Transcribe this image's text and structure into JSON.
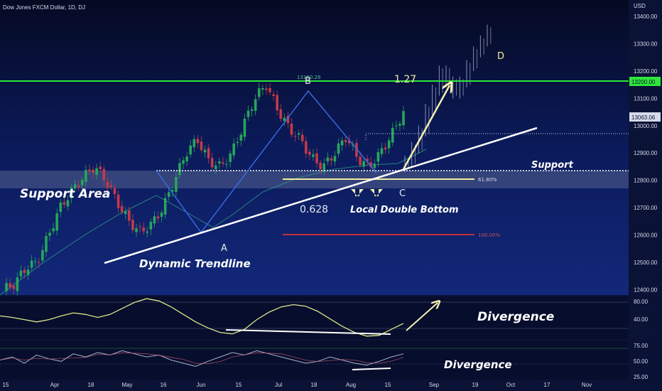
{
  "header": {
    "symbol_title": "Dow Jones FXCM Dollar, 1D, DJ",
    "currency": "USD"
  },
  "chart_data": {
    "type": "candlestick",
    "ylim": [
      12380,
      13460
    ],
    "y_ticks": [
      12400,
      12500,
      12600,
      12700,
      12800,
      12900,
      13000,
      13100,
      13200,
      13300,
      13400
    ],
    "x_ticks": [
      "15",
      "Apr",
      "18",
      "May",
      "16",
      "Jun",
      "15",
      "Jul",
      "18",
      "Aug",
      "15",
      "Sep",
      "19",
      "Oct",
      "17",
      "Nov"
    ],
    "price_badges": {
      "resistance": "13200.00",
      "current": "13063.06"
    },
    "ohlc_anchor_closes": [
      12400,
      12420,
      12480,
      12500,
      12600,
      12700,
      12760,
      12810,
      12850,
      12800,
      12720,
      12650,
      12610,
      12640,
      12700,
      12800,
      12900,
      12950,
      12870,
      12850,
      12900,
      13000,
      13100,
      13150,
      13060,
      12990,
      12950,
      12880,
      12850,
      12900,
      12960,
      12880,
      12850,
      12900,
      12970,
      13050
    ],
    "projection_closes": [
      12870,
      12920,
      12980,
      13060,
      13130,
      13200,
      13160,
      13120,
      13160,
      13220,
      13270,
      13310,
      13350
    ],
    "levels": [
      {
        "name": "Support",
        "value": 12855
      },
      {
        "name": "61.80%",
        "value": 12820
      },
      {
        "name": "100.00%",
        "value": 12610
      },
      {
        "name": "1.27",
        "value": 13200
      },
      {
        "name": "13150.28",
        "value": 13180
      }
    ],
    "annotations": {
      "support_area": "Support Area",
      "dynamic_trendline": "Dynamic Trendline",
      "support": "Support",
      "local_double_bottom": "Local Double Bottom",
      "ratio_0628": "0.628",
      "ratio_127": "1.27",
      "point_a": "A",
      "point_b": "B",
      "point_c": "C",
      "point_d": "D",
      "fib_618": "61.80%",
      "fib_100": "100.00%",
      "fib_top": "13150.28",
      "divergence_1": "Divergence",
      "divergence_2": "Divergence"
    },
    "osc1": {
      "ylim": [
        30,
        85
      ],
      "y_ticks": [
        "80.00",
        "40.00"
      ],
      "values": [
        60,
        58,
        55,
        52,
        55,
        60,
        64,
        62,
        58,
        62,
        70,
        78,
        83,
        80,
        72,
        62,
        52,
        44,
        38,
        36,
        42,
        55,
        65,
        72,
        75,
        73,
        66,
        56,
        46,
        38,
        33,
        34,
        42,
        50
      ]
    },
    "osc2": {
      "ylim": [
        20,
        80
      ],
      "y_ticks": [
        "75.00",
        "50.00",
        "25.00"
      ],
      "values": [
        50,
        55,
        45,
        58,
        52,
        48,
        60,
        55,
        62,
        58,
        65,
        60,
        55,
        58,
        50,
        45,
        40,
        48,
        55,
        62,
        58,
        65,
        60,
        55,
        50,
        45,
        48,
        55,
        50,
        45,
        42,
        48,
        55,
        60
      ]
    },
    "colors": {
      "bull": "#26a65b",
      "bear": "#c43a4a",
      "resistance": "#2ee63a",
      "fib_yellow": "#f0ee9a",
      "fib_red": "#c0303e",
      "osc_line": "#d9e88a",
      "osc2_line": "#aab2cc"
    }
  }
}
